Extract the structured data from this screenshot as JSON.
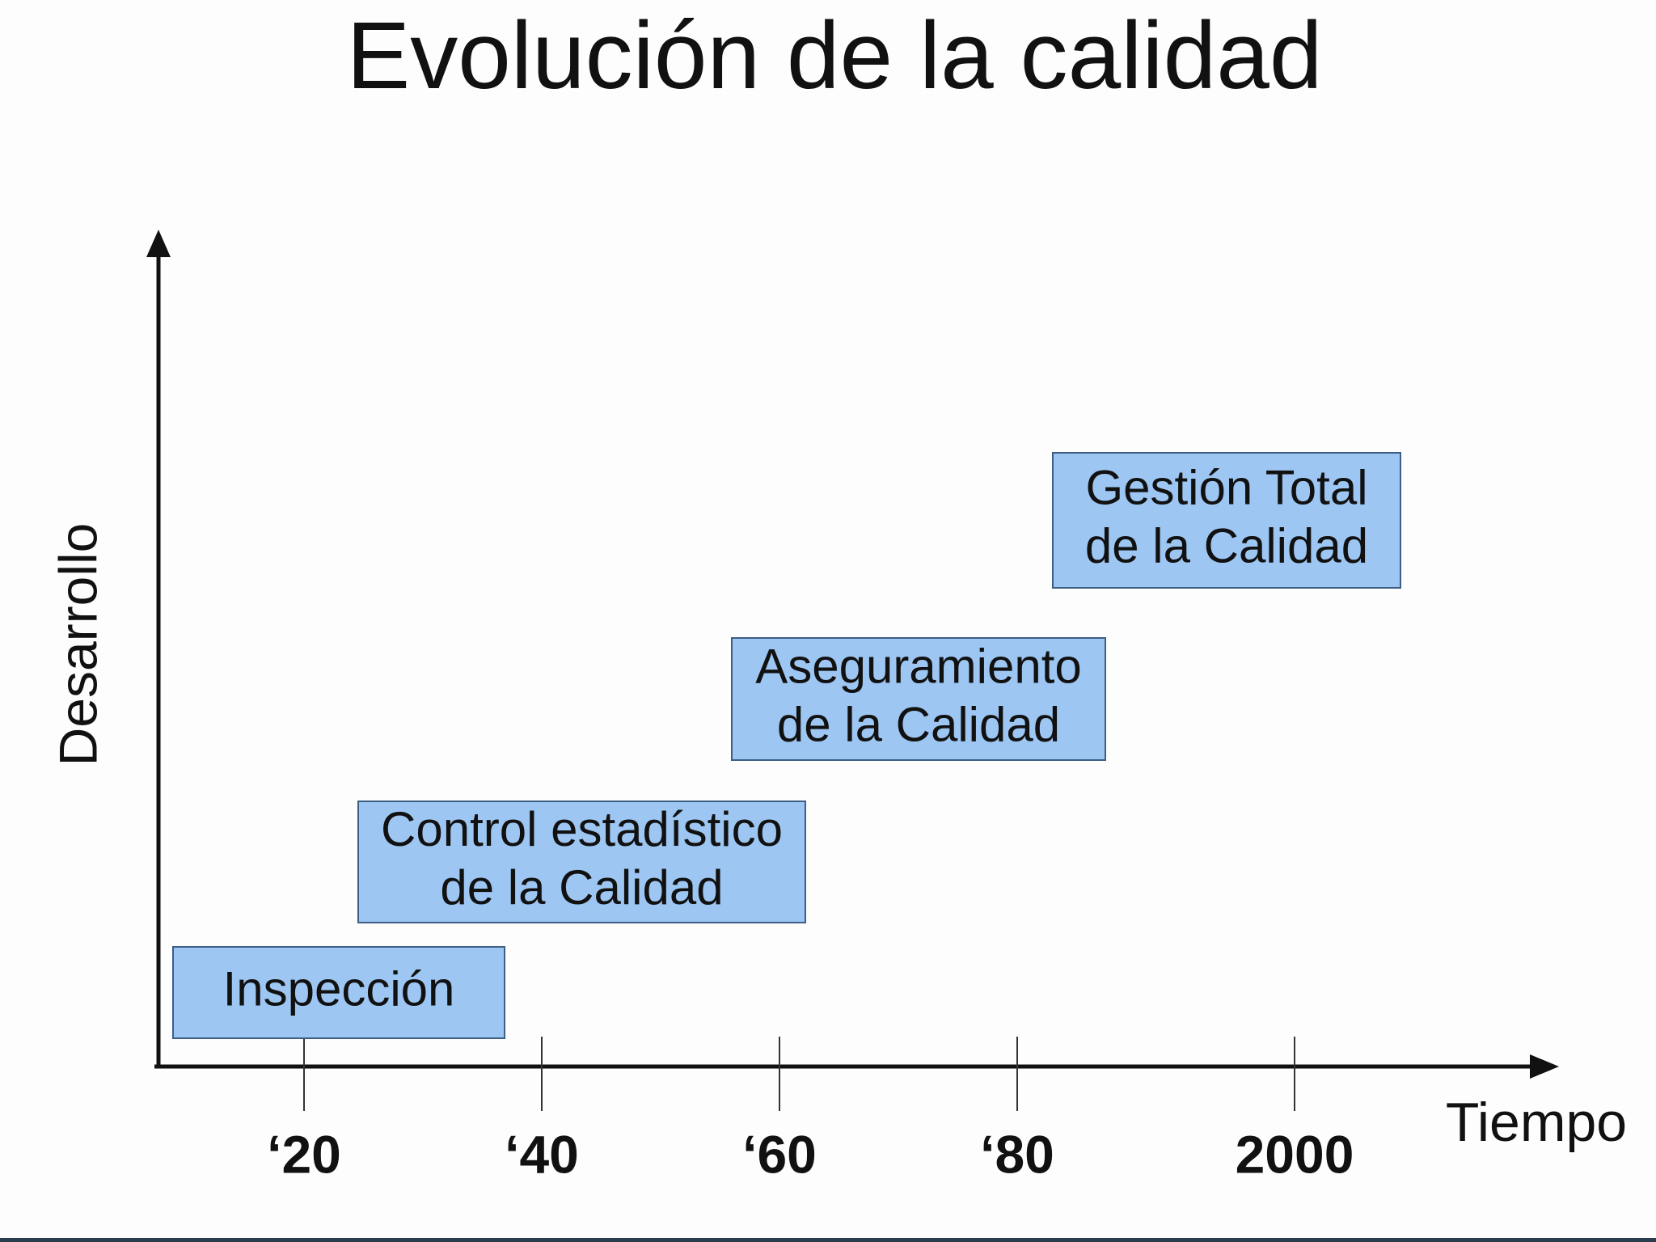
{
  "title": "Evolución de la calidad",
  "y_axis_label": "Desarrollo",
  "x_axis_label": "Tiempo",
  "x_ticks": [
    "‘20",
    "‘40",
    "‘60",
    "‘80",
    "2000"
  ],
  "stages": [
    {
      "lines": [
        "Inspección"
      ]
    },
    {
      "lines": [
        "Control estadístico",
        "de la Calidad"
      ]
    },
    {
      "lines": [
        "Aseguramiento",
        "de la Calidad"
      ]
    },
    {
      "lines": [
        "Gestión Total",
        "de la Calidad"
      ]
    }
  ]
}
